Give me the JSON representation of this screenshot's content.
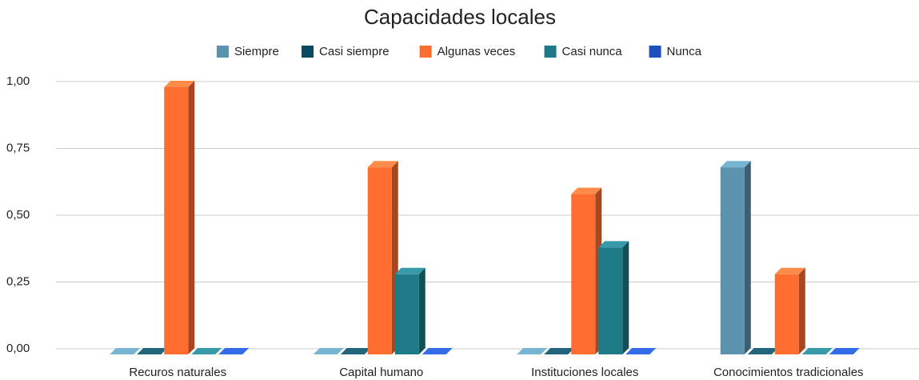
{
  "chart_data": {
    "type": "bar3d",
    "title": "Capacidades locales",
    "categories": [
      "Recuros naturales",
      "Capital humano",
      "Instituciones locales",
      "Conocimientos tradicionales"
    ],
    "series": [
      {
        "name": "Siempre",
        "color": "#5b92ae",
        "values": [
          0,
          0,
          0,
          0.7
        ]
      },
      {
        "name": "Casi siempre",
        "color": "#0b4a5e",
        "values": [
          0,
          0,
          0,
          0
        ]
      },
      {
        "name": "Algunas veces",
        "color": "#ff6d31",
        "values": [
          1,
          0.7,
          0.6,
          0.3
        ]
      },
      {
        "name": "Casi nunca",
        "color": "#1f7a87",
        "values": [
          0,
          0.3,
          0.4,
          0
        ]
      },
      {
        "name": "Nunca",
        "color": "#1d4fbf",
        "values": [
          0,
          0,
          0,
          0
        ]
      }
    ],
    "ylim": [
      0,
      1
    ],
    "yticks": [
      {
        "value": 0,
        "label": "0,00"
      },
      {
        "value": 0.25,
        "label": "0,25"
      },
      {
        "value": 0.5,
        "label": "0,50"
      },
      {
        "value": 0.75,
        "label": "0,75"
      },
      {
        "value": 1,
        "label": "1,00"
      }
    ],
    "grid": true,
    "legend": "top"
  }
}
